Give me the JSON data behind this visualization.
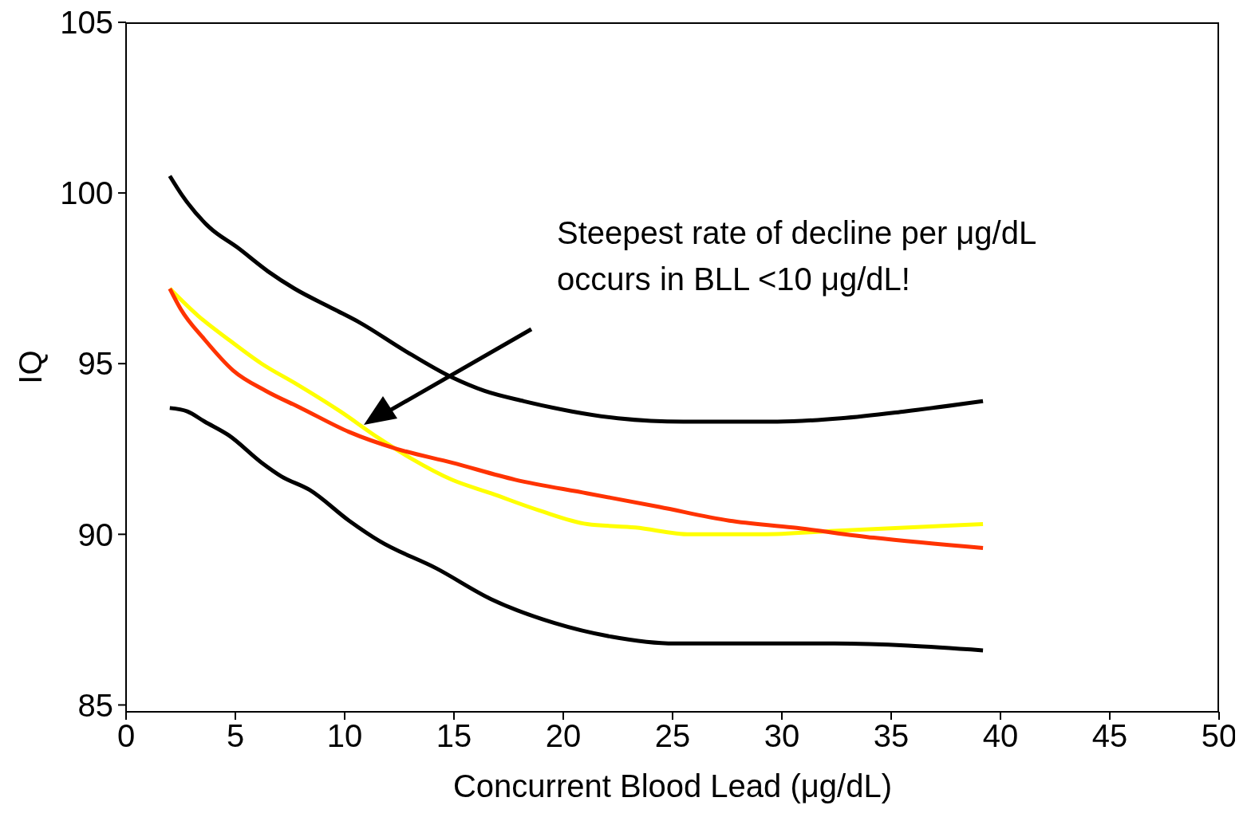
{
  "chart_data": {
    "type": "line",
    "xlabel": "Concurrent Blood Lead (μg/dL)",
    "ylabel": "IQ",
    "xlim": [
      0,
      50
    ],
    "xticks": [
      0,
      5,
      10,
      15,
      20,
      25,
      30,
      35,
      40,
      45,
      50
    ],
    "ylim": [
      84.8,
      105
    ],
    "yticks": [
      85,
      90,
      95,
      100,
      105
    ],
    "grid": false,
    "legend": false,
    "marker": "none",
    "line_style": "solid",
    "annotations": [
      "Steepest rate of decline per μg/dL occurs in BLL <10 μg/dL!"
    ],
    "series": [
      {
        "color": "#000000",
        "x": [
          2,
          2.6,
          3.8,
          5.1,
          6.5,
          7.7,
          9.5,
          10.7,
          12.7,
          14.9,
          16.4,
          18.2,
          20.4,
          22.5,
          25.5,
          29.8,
          32.7,
          35.6,
          39.2
        ],
        "values": [
          100.5,
          99.9,
          99,
          98.4,
          97.7,
          97.2,
          96.6,
          96.2,
          95.4,
          94.6,
          94.2,
          93.9,
          93.6,
          93.4,
          93.3,
          93.3,
          93.4,
          93.6,
          93.9
        ]
      },
      {
        "color": "#000000",
        "x": [
          2,
          2.8,
          3.6,
          4.7,
          6.2,
          7.1,
          8.4,
          10.2,
          11.6,
          14.2,
          16.7,
          19.6,
          22.2,
          25.1,
          26.5,
          32.4,
          39.2
        ],
        "values": [
          93.7,
          93.6,
          93.3,
          92.9,
          92.1,
          91.7,
          91.3,
          90.4,
          89.8,
          89,
          88.1,
          87.4,
          87,
          86.8,
          86.8,
          86.8,
          86.6
        ]
      },
      {
        "color": "#ffff00",
        "x": [
          2,
          3.3,
          4.7,
          6.2,
          7.8,
          9.8,
          11.6,
          13.1,
          14.9,
          16.7,
          18.9,
          21.1,
          23.3,
          25.8,
          29.1,
          32.4,
          39.2
        ],
        "values": [
          97.2,
          96.4,
          95.7,
          95,
          94.4,
          93.6,
          92.8,
          92.2,
          91.6,
          91.2,
          90.7,
          90.3,
          90.2,
          90,
          90,
          90.1,
          90.3
        ]
      },
      {
        "color": "#ff3300",
        "x": [
          2,
          2.5,
          3.6,
          4.9,
          6.4,
          8,
          10.2,
          12.4,
          14.9,
          17.8,
          21.1,
          24.4,
          27.6,
          30.5,
          34.2,
          39.2
        ],
        "values": [
          97.2,
          96.6,
          95.7,
          94.8,
          94.2,
          93.7,
          93,
          92.5,
          92.1,
          91.6,
          91.2,
          90.8,
          90.4,
          90.2,
          89.9,
          89.6
        ]
      }
    ]
  }
}
